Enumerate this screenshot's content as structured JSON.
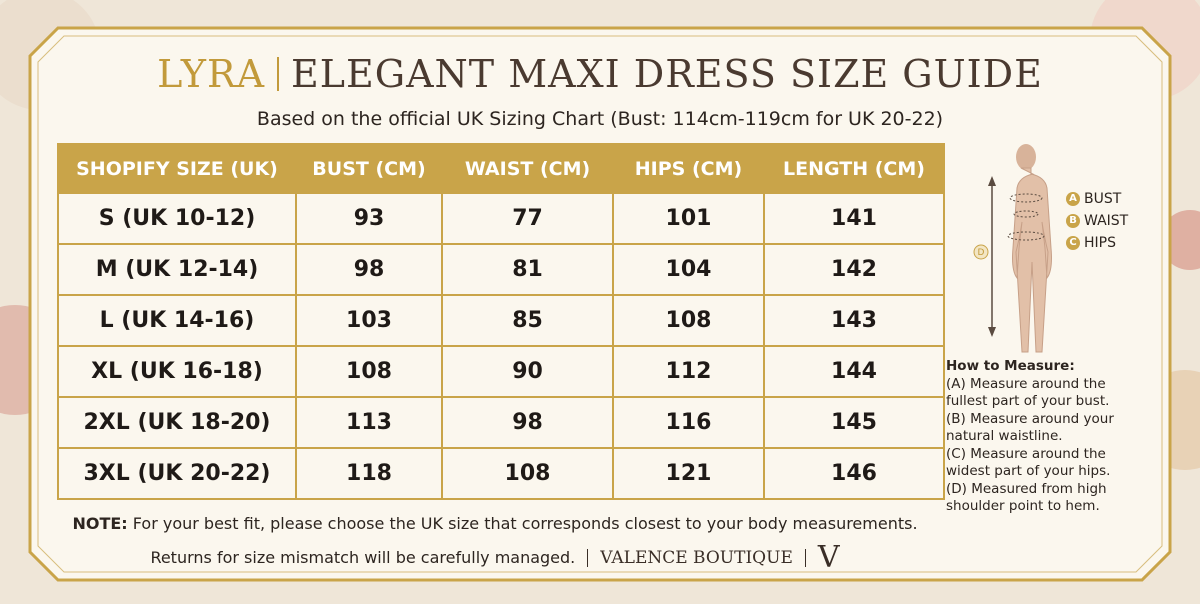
{
  "header": {
    "brand": "LYRA",
    "title": "ELEGANT MAXI DRESS SIZE GUIDE",
    "subtitle": "Based on the official UK Sizing Chart (Bust: 114cm-119cm for UK 20-22)"
  },
  "table": {
    "columns": [
      "SHOPIFY SIZE (UK)",
      "BUST (CM)",
      "WAIST (CM)",
      "HIPS (CM)",
      "LENGTH (CM)"
    ],
    "rows": [
      [
        "S (UK 10-12)",
        "93",
        "77",
        "101",
        "141"
      ],
      [
        "M (UK 12-14)",
        "98",
        "81",
        "104",
        "142"
      ],
      [
        "L (UK 14-16)",
        "103",
        "85",
        "108",
        "143"
      ],
      [
        "XL (UK 16-18)",
        "108",
        "90",
        "112",
        "144"
      ],
      [
        "2XL (UK 18-20)",
        "113",
        "98",
        "116",
        "145"
      ],
      [
        "3XL (UK 20-22)",
        "118",
        "108",
        "121",
        "146"
      ]
    ]
  },
  "diagram": {
    "labels": [
      {
        "letter": "A",
        "text": "BUST"
      },
      {
        "letter": "B",
        "text": "WAIST"
      },
      {
        "letter": "C",
        "text": "HIPS"
      }
    ],
    "length_marker": "D"
  },
  "how_to": {
    "title": "How to Measure:",
    "items": [
      "(A) Measure around the fullest part of your bust.",
      "(B) Measure around your natural waistline.",
      "(C) Measure around the widest part of your hips.",
      "(D) Measured from high shoulder point to hem."
    ]
  },
  "note": {
    "label": "NOTE:",
    "text": "For your best fit, please choose the UK size that corresponds closest to your body measurements."
  },
  "footer": {
    "returns": "Returns for size mismatch will be carefully managed.",
    "brand": "VALENCE BOUTIQUE",
    "monogram": "V"
  }
}
